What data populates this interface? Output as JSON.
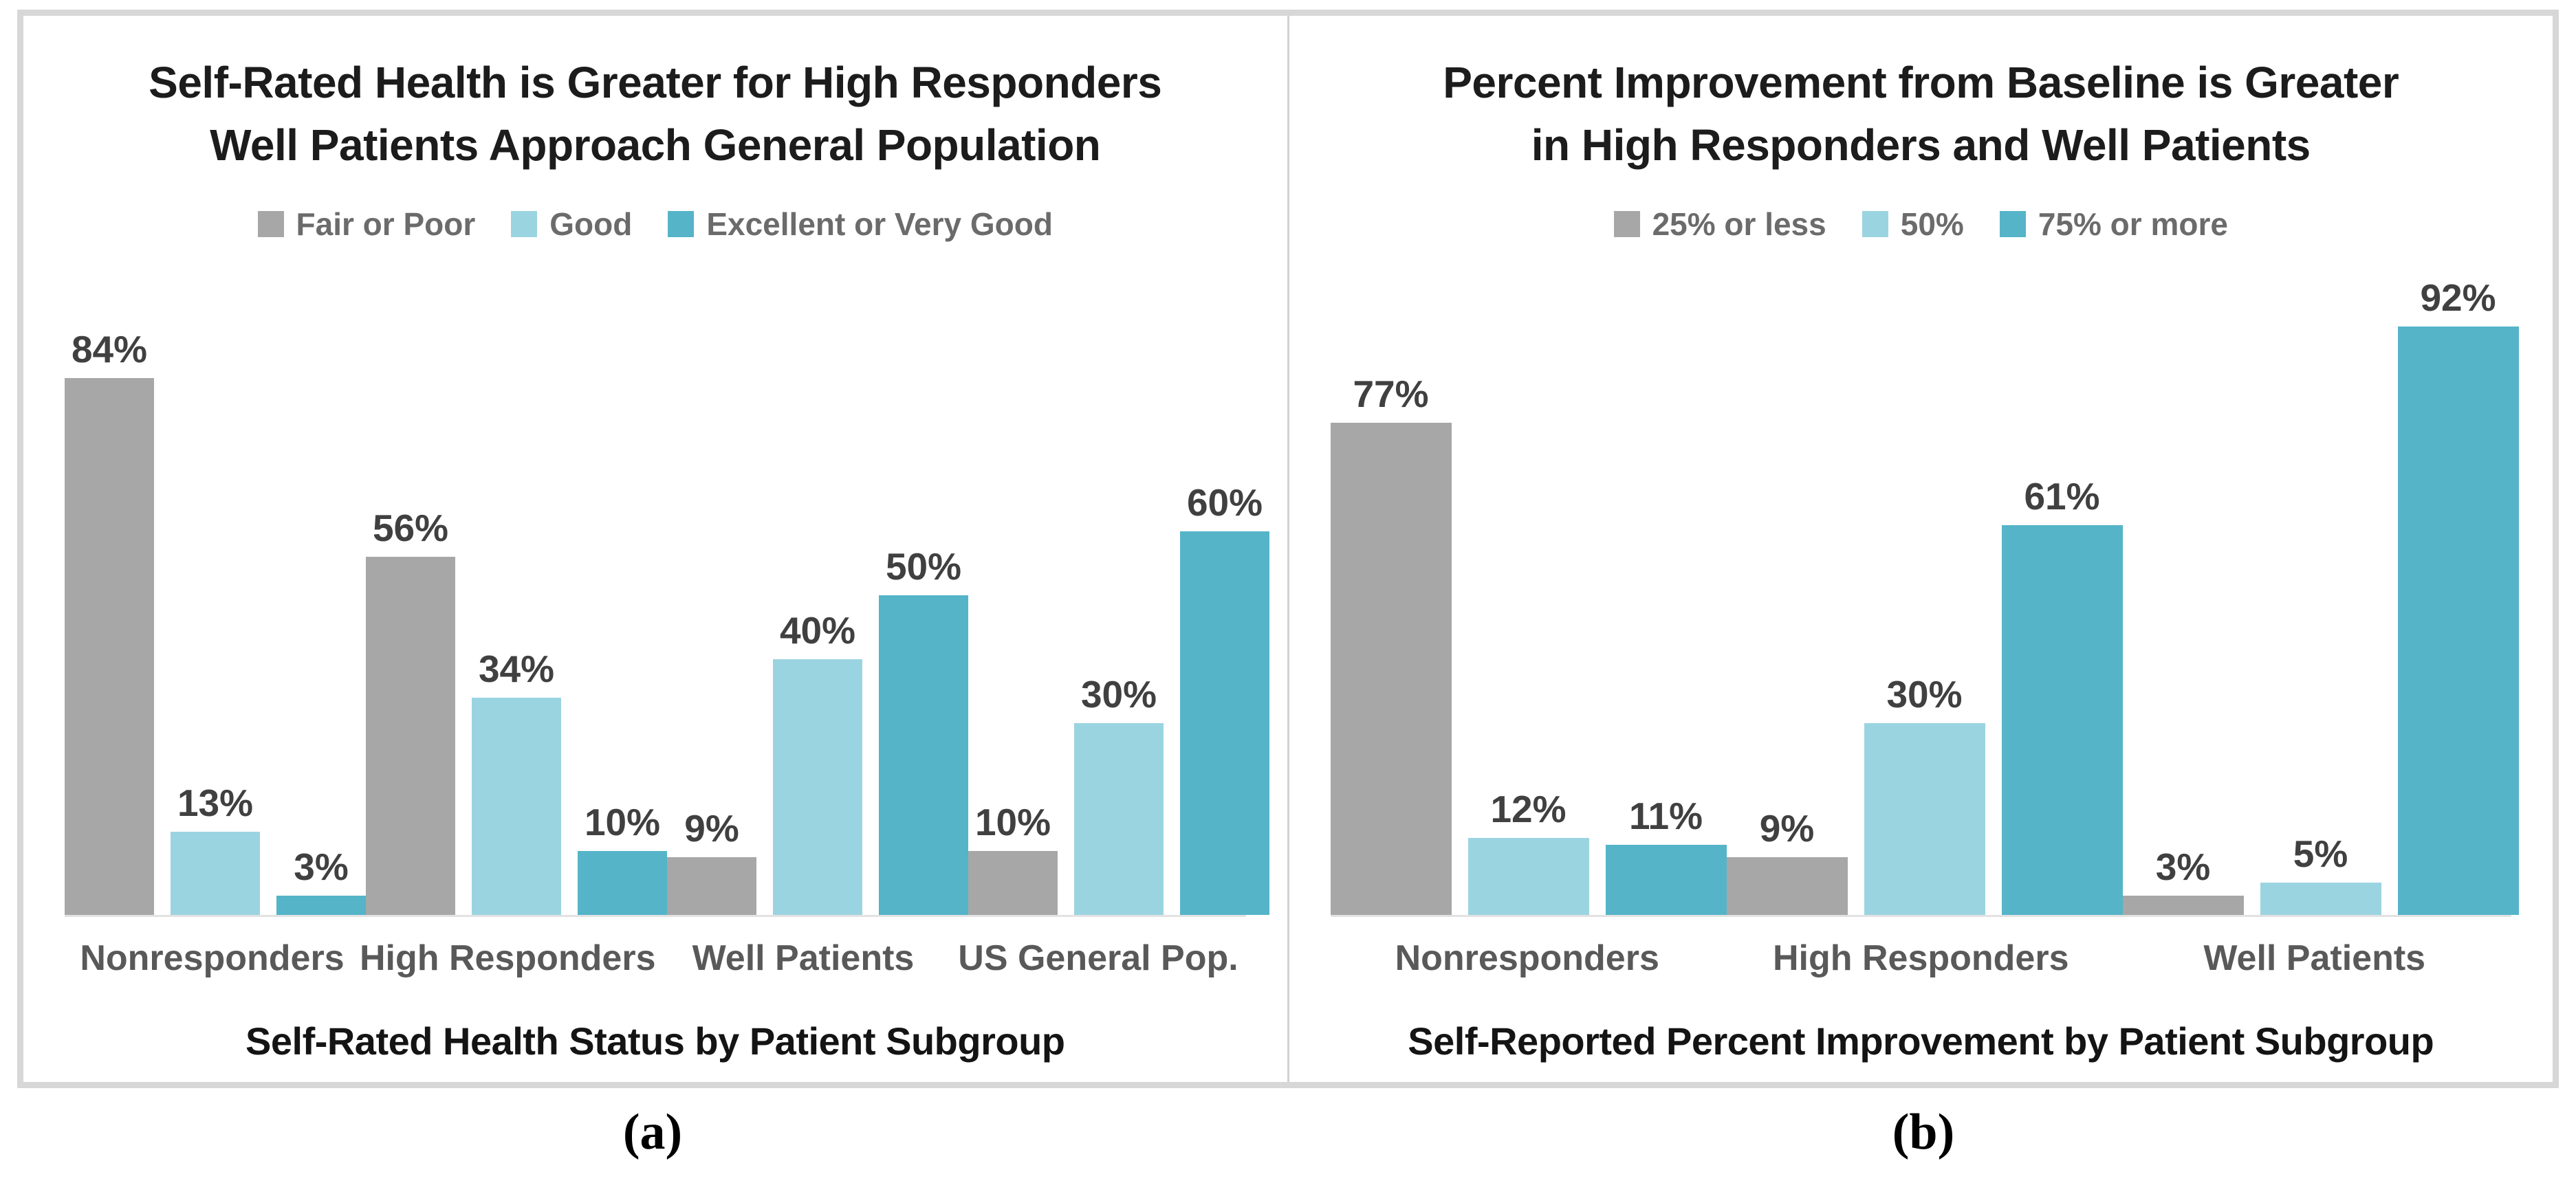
{
  "figure": {
    "background": "#ffffff",
    "frame_color": "#d7d7d7",
    "divider_color": "#d2d2d2",
    "baseline_color": "#e2e2e2"
  },
  "colors": {
    "gray_series": "#a7a7a7",
    "light_blue_series": "#9bd4e1",
    "teal_series": "#55b4c8",
    "bar_label_text": "#404040",
    "category_text": "#595959",
    "legend_text": "#6b6b6b",
    "title_text": "#1c1c1c"
  },
  "captions": {
    "a": "(a)",
    "b": "(b)"
  },
  "chart_data": [
    {
      "id": "a",
      "type": "bar",
      "title_lines": [
        "Self-Rated Health is Greater for High Responders",
        "Well Patients Approach General Population"
      ],
      "title": "Self-Rated Health is Greater for High Responders Well Patients Approach General Population",
      "categories": [
        "Nonresponders",
        "High Responders",
        "Well Patients",
        "US General Pop."
      ],
      "series": [
        {
          "name": "Fair or Poor",
          "color": "#a7a7a7",
          "values": [
            84,
            56,
            9,
            10
          ]
        },
        {
          "name": "Good",
          "color": "#9bd4e1",
          "values": [
            13,
            34,
            40,
            30
          ]
        },
        {
          "name": "Excellent or Very Good",
          "color": "#55b4c8",
          "values": [
            3,
            10,
            50,
            60
          ]
        }
      ],
      "value_labels": [
        [
          "84%",
          "56%",
          "9%",
          "10%"
        ],
        [
          "13%",
          "34%",
          "40%",
          "30%"
        ],
        [
          "3%",
          "10%",
          "50%",
          "60%"
        ]
      ],
      "value_suffix": "%",
      "xlabel": "Self-Rated Health Status by Patient Subgroup",
      "ylabel": "",
      "ylim": [
        0,
        100
      ],
      "grid": false,
      "legend_position": "top",
      "caption": "(a)"
    },
    {
      "id": "b",
      "type": "bar",
      "title_lines": [
        "Percent Improvement from Baseline is Greater",
        "in High Responders and Well Patients"
      ],
      "title": "Percent Improvement from Baseline is Greater in High Responders and Well Patients",
      "categories": [
        "Nonresponders",
        "High Responders",
        "Well Patients"
      ],
      "series": [
        {
          "name": "25% or less",
          "color": "#a7a7a7",
          "values": [
            77,
            9,
            3
          ]
        },
        {
          "name": "50%",
          "color": "#9bd4e1",
          "values": [
            12,
            30,
            5
          ]
        },
        {
          "name": "75% or more",
          "color": "#55b4c8",
          "values": [
            11,
            61,
            92
          ]
        }
      ],
      "value_labels": [
        [
          "77%",
          "9%",
          "3%"
        ],
        [
          "12%",
          "30%",
          "5%"
        ],
        [
          "11%",
          "61%",
          "92%"
        ]
      ],
      "value_suffix": "%",
      "xlabel": "Self-Reported Percent Improvement by Patient Subgroup",
      "ylabel": "",
      "ylim": [
        0,
        100
      ],
      "grid": false,
      "legend_position": "top",
      "caption": "(b)"
    }
  ]
}
